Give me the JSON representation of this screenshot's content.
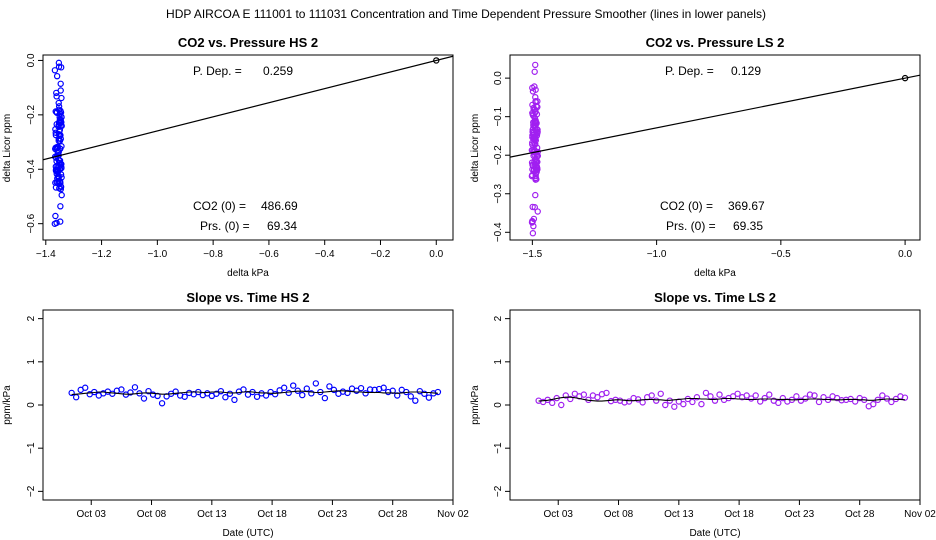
{
  "figure": {
    "suptitle": "HDP    AIRCOA E    111001 to 111031    Concentration and Time Dependent Pressure Smoother (lines in lower panels)"
  },
  "chart_data": [
    {
      "type": "scatter",
      "title": "CO2 vs. Pressure HS 2",
      "xlabel": "delta kPa",
      "ylabel": "delta Licor ppm",
      "xlim": [
        -1.41,
        0.06
      ],
      "ylim": [
        -0.66,
        0.02
      ],
      "xticks": [
        -1.4,
        -1.2,
        -1.0,
        -0.8,
        -0.6,
        -0.4,
        -0.2,
        0.0
      ],
      "xtick_labels": [
        "−1.4",
        "−1.2",
        "−1.0",
        "−0.8",
        "−0.6",
        "−0.4",
        "−0.2",
        "0.0"
      ],
      "yticks": [
        -0.6,
        -0.4,
        -0.2,
        0.0
      ],
      "ytick_labels": [
        "−0.6",
        "−0.4",
        "−0.2",
        "0.0"
      ],
      "annotations": [
        {
          "label": "P. Dep. =",
          "value": "0.259",
          "pos": "top"
        },
        {
          "label": "CO2 (0) =",
          "value": "486.69",
          "pos": "bottom"
        },
        {
          "label": "Prs. (0) =",
          "value": "69.34",
          "pos": "bottom2"
        }
      ],
      "fit_line": {
        "x": [
          -1.41,
          0.06
        ],
        "y": [
          -0.3652,
          0.0155
        ]
      },
      "origin_point": {
        "x": 0.0,
        "y": 0.0
      },
      "color": "#0000ff",
      "cluster": {
        "x_center": -1.355,
        "x_spread": 0.013,
        "y_min": -0.64,
        "y_max": 0.0,
        "y_center": -0.33,
        "n": 110,
        "seed": 7
      }
    },
    {
      "type": "scatter",
      "title": "CO2 vs. Pressure LS 2",
      "xlabel": "delta kPa",
      "ylabel": "delta Licor ppm",
      "xlim": [
        -1.59,
        0.06
      ],
      "ylim": [
        -0.42,
        0.06
      ],
      "xticks": [
        -1.5,
        -1.0,
        -0.5,
        0.0
      ],
      "xtick_labels": [
        "−1.5",
        "−1.0",
        "−0.5",
        "0.0"
      ],
      "yticks": [
        -0.4,
        -0.3,
        -0.2,
        -0.1,
        0.0
      ],
      "ytick_labels": [
        "−0.4",
        "−0.3",
        "−0.2",
        "−0.1",
        "0.0"
      ],
      "annotations": [
        {
          "label": "P. Dep. =",
          "value": "0.129",
          "pos": "top"
        },
        {
          "label": "CO2 (0) =",
          "value": "369.67",
          "pos": "bottom"
        },
        {
          "label": "Prs. (0) =",
          "value": "69.35",
          "pos": "bottom2"
        }
      ],
      "fit_line": {
        "x": [
          -1.59,
          0.06
        ],
        "y": [
          -0.2051,
          0.0077
        ]
      },
      "origin_point": {
        "x": 0.0,
        "y": 0.0
      },
      "color": "#a020f0",
      "cluster": {
        "x_center": -1.49,
        "x_spread": 0.012,
        "y_min": -0.41,
        "y_max": 0.05,
        "y_center": -0.16,
        "n": 130,
        "seed": 11
      }
    },
    {
      "type": "line",
      "title": "Slope vs. Time HS 2",
      "xlabel": "Date (UTC)",
      "ylabel": "ppm/kPa",
      "xlim": [
        "2011-09-29",
        "2011-11-02"
      ],
      "ylim": [
        -2.2,
        2.2
      ],
      "xticks": [
        "2011-10-03",
        "2011-10-08",
        "2011-10-13",
        "2011-10-18",
        "2011-10-23",
        "2011-10-28",
        "2011-11-02"
      ],
      "xtick_labels": [
        "Oct 03",
        "Oct 08",
        "Oct 13",
        "Oct 18",
        "Oct 23",
        "Oct 28",
        "Nov 02"
      ],
      "yticks": [
        -2,
        -1,
        0,
        1,
        2
      ],
      "ytick_labels": [
        "−2",
        "−1",
        "0",
        "1",
        "2"
      ],
      "color": "#0000ff",
      "x": [
        "2011-10-01 09:00",
        "2011-10-01 18:00",
        "2011-10-02 03:00",
        "2011-10-02 12:00",
        "2011-10-02 21:00",
        "2011-10-03 06:00",
        "2011-10-03 15:00",
        "2011-10-04 00:00",
        "2011-10-04 09:00",
        "2011-10-04 18:00",
        "2011-10-05 03:00",
        "2011-10-05 12:00",
        "2011-10-05 21:00",
        "2011-10-06 06:00",
        "2011-10-06 15:00",
        "2011-10-07 00:00",
        "2011-10-07 09:00",
        "2011-10-07 18:00",
        "2011-10-08 03:00",
        "2011-10-08 12:00",
        "2011-10-08 21:00",
        "2011-10-09 06:00",
        "2011-10-09 15:00",
        "2011-10-10 00:00",
        "2011-10-10 09:00",
        "2011-10-10 18:00",
        "2011-10-11 03:00",
        "2011-10-11 12:00",
        "2011-10-11 21:00",
        "2011-10-12 06:00",
        "2011-10-12 15:00",
        "2011-10-13 00:00",
        "2011-10-13 09:00",
        "2011-10-13 18:00",
        "2011-10-14 03:00",
        "2011-10-14 12:00",
        "2011-10-14 21:00",
        "2011-10-15 06:00",
        "2011-10-15 15:00",
        "2011-10-16 00:00",
        "2011-10-16 09:00",
        "2011-10-16 18:00",
        "2011-10-17 03:00",
        "2011-10-17 12:00",
        "2011-10-17 21:00",
        "2011-10-18 06:00",
        "2011-10-18 15:00",
        "2011-10-19 00:00",
        "2011-10-19 09:00",
        "2011-10-19 18:00",
        "2011-10-20 03:00",
        "2011-10-20 12:00",
        "2011-10-20 21:00",
        "2011-10-21 06:00",
        "2011-10-21 15:00",
        "2011-10-22 00:00",
        "2011-10-22 09:00",
        "2011-10-22 18:00",
        "2011-10-23 03:00",
        "2011-10-23 12:00",
        "2011-10-23 21:00",
        "2011-10-24 06:00",
        "2011-10-24 15:00",
        "2011-10-25 00:00",
        "2011-10-25 09:00",
        "2011-10-25 18:00",
        "2011-10-26 03:00",
        "2011-10-26 12:00",
        "2011-10-26 21:00",
        "2011-10-27 06:00",
        "2011-10-27 15:00",
        "2011-10-28 00:00",
        "2011-10-28 09:00",
        "2011-10-28 18:00",
        "2011-10-29 03:00",
        "2011-10-29 12:00",
        "2011-10-29 21:00",
        "2011-10-30 06:00",
        "2011-10-30 15:00",
        "2011-10-31 00:00",
        "2011-10-31 09:00",
        "2011-10-31 18:00"
      ],
      "y": [
        0.28,
        0.18,
        0.35,
        0.4,
        0.25,
        0.3,
        0.22,
        0.27,
        0.31,
        0.26,
        0.33,
        0.36,
        0.24,
        0.29,
        0.41,
        0.27,
        0.15,
        0.32,
        0.24,
        0.21,
        0.04,
        0.2,
        0.26,
        0.31,
        0.22,
        0.19,
        0.28,
        0.25,
        0.3,
        0.23,
        0.27,
        0.21,
        0.26,
        0.32,
        0.18,
        0.26,
        0.12,
        0.31,
        0.36,
        0.24,
        0.3,
        0.19,
        0.27,
        0.22,
        0.3,
        0.25,
        0.34,
        0.4,
        0.28,
        0.45,
        0.33,
        0.23,
        0.38,
        0.27,
        0.5,
        0.3,
        0.16,
        0.43,
        0.35,
        0.26,
        0.31,
        0.28,
        0.38,
        0.33,
        0.39,
        0.27,
        0.36,
        0.35,
        0.37,
        0.4,
        0.3,
        0.33,
        0.22,
        0.35,
        0.3,
        0.2,
        0.1,
        0.32,
        0.26,
        0.17,
        0.27,
        0.3
      ],
      "smooth": [
        0.24,
        0.25,
        0.26,
        0.27,
        0.28,
        0.29,
        0.3,
        0.3,
        0.29,
        0.28,
        0.27,
        0.26,
        0.25,
        0.25,
        0.26,
        0.27,
        0.28,
        0.28,
        0.27,
        0.26,
        0.25,
        0.25,
        0.26,
        0.27,
        0.28,
        0.29,
        0.3,
        0.3,
        0.3,
        0.29,
        0.29,
        0.3,
        0.3,
        0.3,
        0.29,
        0.28,
        0.28,
        0.29,
        0.3,
        0.31,
        0.3,
        0.29,
        0.28,
        0.28,
        0.27,
        0.27,
        0.28,
        0.29,
        0.3,
        0.31,
        0.32,
        0.32,
        0.31,
        0.3,
        0.29,
        0.29,
        0.3,
        0.31,
        0.32,
        0.33,
        0.33,
        0.32,
        0.31,
        0.3,
        0.3,
        0.29,
        0.29,
        0.29,
        0.29,
        0.28,
        0.28,
        0.28,
        0.27,
        0.28,
        0.29,
        0.3,
        0.3,
        0.3,
        0.29,
        0.29,
        0.28,
        0.27
      ]
    },
    {
      "type": "line",
      "title": "Slope vs. Time LS 2",
      "xlabel": "Date (UTC)",
      "ylabel": "ppm/kPa",
      "xlim": [
        "2011-09-29",
        "2011-11-02"
      ],
      "ylim": [
        -2.2,
        2.2
      ],
      "xticks": [
        "2011-10-03",
        "2011-10-08",
        "2011-10-13",
        "2011-10-18",
        "2011-10-23",
        "2011-10-28",
        "2011-11-02"
      ],
      "xtick_labels": [
        "Oct 03",
        "Oct 08",
        "Oct 13",
        "Oct 18",
        "Oct 23",
        "Oct 28",
        "Nov 02"
      ],
      "yticks": [
        -2,
        -1,
        0,
        1,
        2
      ],
      "ytick_labels": [
        "−2",
        "−1",
        "0",
        "1",
        "2"
      ],
      "color": "#a020f0",
      "x": [
        "2011-10-01 09:00",
        "2011-10-01 18:00",
        "2011-10-02 03:00",
        "2011-10-02 12:00",
        "2011-10-02 21:00",
        "2011-10-03 06:00",
        "2011-10-03 15:00",
        "2011-10-04 00:00",
        "2011-10-04 09:00",
        "2011-10-04 18:00",
        "2011-10-05 03:00",
        "2011-10-05 12:00",
        "2011-10-05 21:00",
        "2011-10-06 06:00",
        "2011-10-06 15:00",
        "2011-10-07 00:00",
        "2011-10-07 09:00",
        "2011-10-07 18:00",
        "2011-10-08 03:00",
        "2011-10-08 12:00",
        "2011-10-08 21:00",
        "2011-10-09 06:00",
        "2011-10-09 15:00",
        "2011-10-10 00:00",
        "2011-10-10 09:00",
        "2011-10-10 18:00",
        "2011-10-11 03:00",
        "2011-10-11 12:00",
        "2011-10-11 21:00",
        "2011-10-12 06:00",
        "2011-10-12 15:00",
        "2011-10-13 00:00",
        "2011-10-13 09:00",
        "2011-10-13 18:00",
        "2011-10-14 03:00",
        "2011-10-14 12:00",
        "2011-10-14 21:00",
        "2011-10-15 06:00",
        "2011-10-15 15:00",
        "2011-10-16 00:00",
        "2011-10-16 09:00",
        "2011-10-16 18:00",
        "2011-10-17 03:00",
        "2011-10-17 12:00",
        "2011-10-17 21:00",
        "2011-10-18 06:00",
        "2011-10-18 15:00",
        "2011-10-19 00:00",
        "2011-10-19 09:00",
        "2011-10-19 18:00",
        "2011-10-20 03:00",
        "2011-10-20 12:00",
        "2011-10-20 21:00",
        "2011-10-21 06:00",
        "2011-10-21 15:00",
        "2011-10-22 00:00",
        "2011-10-22 09:00",
        "2011-10-22 18:00",
        "2011-10-23 03:00",
        "2011-10-23 12:00",
        "2011-10-23 21:00",
        "2011-10-24 06:00",
        "2011-10-24 15:00",
        "2011-10-25 00:00",
        "2011-10-25 09:00",
        "2011-10-25 18:00",
        "2011-10-26 03:00",
        "2011-10-26 12:00",
        "2011-10-26 21:00",
        "2011-10-27 06:00",
        "2011-10-27 15:00",
        "2011-10-28 00:00",
        "2011-10-28 09:00",
        "2011-10-28 18:00",
        "2011-10-29 03:00",
        "2011-10-29 12:00",
        "2011-10-29 21:00",
        "2011-10-30 06:00",
        "2011-10-30 15:00",
        "2011-10-31 00:00",
        "2011-10-31 09:00",
        "2011-10-31 18:00"
      ],
      "y": [
        0.1,
        0.07,
        0.12,
        0.05,
        0.16,
        0.0,
        0.22,
        0.14,
        0.26,
        0.2,
        0.24,
        0.12,
        0.22,
        0.18,
        0.25,
        0.28,
        0.09,
        0.12,
        0.1,
        0.06,
        0.08,
        0.16,
        0.13,
        0.06,
        0.18,
        0.22,
        0.1,
        0.26,
        0.0,
        0.1,
        -0.04,
        0.08,
        0.02,
        0.14,
        0.07,
        0.18,
        0.02,
        0.28,
        0.2,
        0.1,
        0.24,
        0.12,
        0.16,
        0.2,
        0.26,
        0.18,
        0.22,
        0.15,
        0.22,
        0.08,
        0.16,
        0.24,
        0.1,
        0.05,
        0.16,
        0.08,
        0.12,
        0.2,
        0.1,
        0.15,
        0.24,
        0.22,
        0.07,
        0.18,
        0.12,
        0.2,
        0.16,
        0.11,
        0.12,
        0.14,
        0.08,
        0.16,
        0.12,
        -0.03,
        0.02,
        0.12,
        0.22,
        0.15,
        0.07,
        0.14,
        0.2,
        0.17
      ],
      "smooth": [
        0.09,
        0.1,
        0.11,
        0.13,
        0.15,
        0.17,
        0.18,
        0.18,
        0.17,
        0.15,
        0.13,
        0.11,
        0.1,
        0.09,
        0.09,
        0.1,
        0.11,
        0.12,
        0.12,
        0.11,
        0.1,
        0.1,
        0.11,
        0.12,
        0.13,
        0.13,
        0.12,
        0.12,
        0.11,
        0.11,
        0.12,
        0.13,
        0.14,
        0.15,
        0.15,
        0.15,
        0.14,
        0.14,
        0.13,
        0.13,
        0.14,
        0.15,
        0.15,
        0.15,
        0.14,
        0.14,
        0.13,
        0.13,
        0.13,
        0.14,
        0.14,
        0.14,
        0.14,
        0.13,
        0.13,
        0.13,
        0.12,
        0.12,
        0.13,
        0.13,
        0.14,
        0.14,
        0.14,
        0.13,
        0.13,
        0.12,
        0.12,
        0.12,
        0.13,
        0.13,
        0.13,
        0.12,
        0.12,
        0.11,
        0.11,
        0.12,
        0.13,
        0.14,
        0.14,
        0.13,
        0.13,
        0.12
      ]
    }
  ]
}
